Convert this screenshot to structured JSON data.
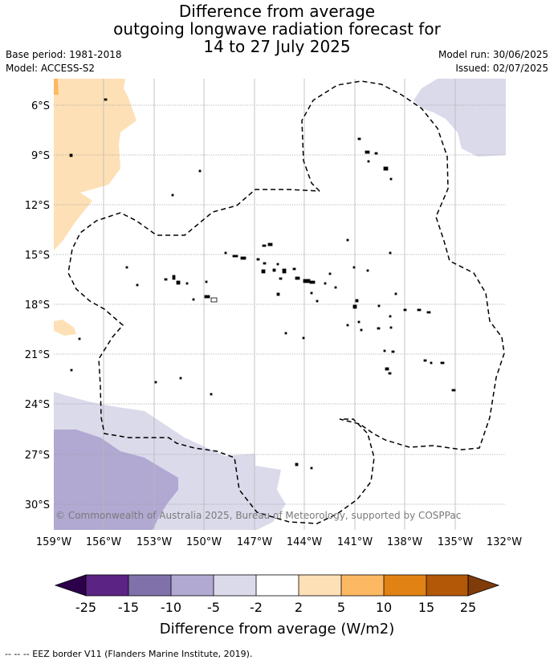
{
  "title": {
    "line1": "Difference from average",
    "line2": "outgoing longwave radiation forecast for",
    "line3": "14 to 27 July 2025"
  },
  "meta": {
    "base_period": "Base period: 1981-2018",
    "model": "Model: ACCESS-S2",
    "model_run": "Model run: 30/06/2025",
    "issued": "Issued: 02/07/2025"
  },
  "map": {
    "lon_ticks": [
      "159°W",
      "156°W",
      "153°W",
      "150°W",
      "147°W",
      "144°W",
      "141°W",
      "138°W",
      "135°W",
      "132°W"
    ],
    "lat_ticks": [
      "6°S",
      "9°S",
      "12°S",
      "15°S",
      "18°S",
      "21°S",
      "24°S",
      "27°S",
      "30°S"
    ],
    "lon_values": [
      -159,
      -156,
      -153,
      -150,
      -147,
      -144,
      -141,
      -138,
      -135,
      -132
    ],
    "lat_values": [
      -6,
      -9,
      -12,
      -15,
      -18,
      -21,
      -24,
      -27,
      -30
    ],
    "copyright": "© Commonwealth of Australia 2025, Bureau of Meteorology, supported by COSPPac"
  },
  "colorbar": {
    "labels": [
      "-25",
      "-15",
      "-10",
      "-5",
      "-2",
      "2",
      "5",
      "10",
      "15",
      "25"
    ],
    "colors": [
      "#5b2383",
      "#8071aa",
      "#b1a9d2",
      "#dadaeb",
      "#ffffff",
      "#fee0b6",
      "#fdb863",
      "#e08214",
      "#b35806"
    ],
    "under_color": "#2d004b",
    "over_color": "#7f3b08",
    "title": "Difference from average (W/m2)"
  },
  "footnote": "--  --  -- EEZ border V11 (Flanders Marine Institute, 2019)."
}
